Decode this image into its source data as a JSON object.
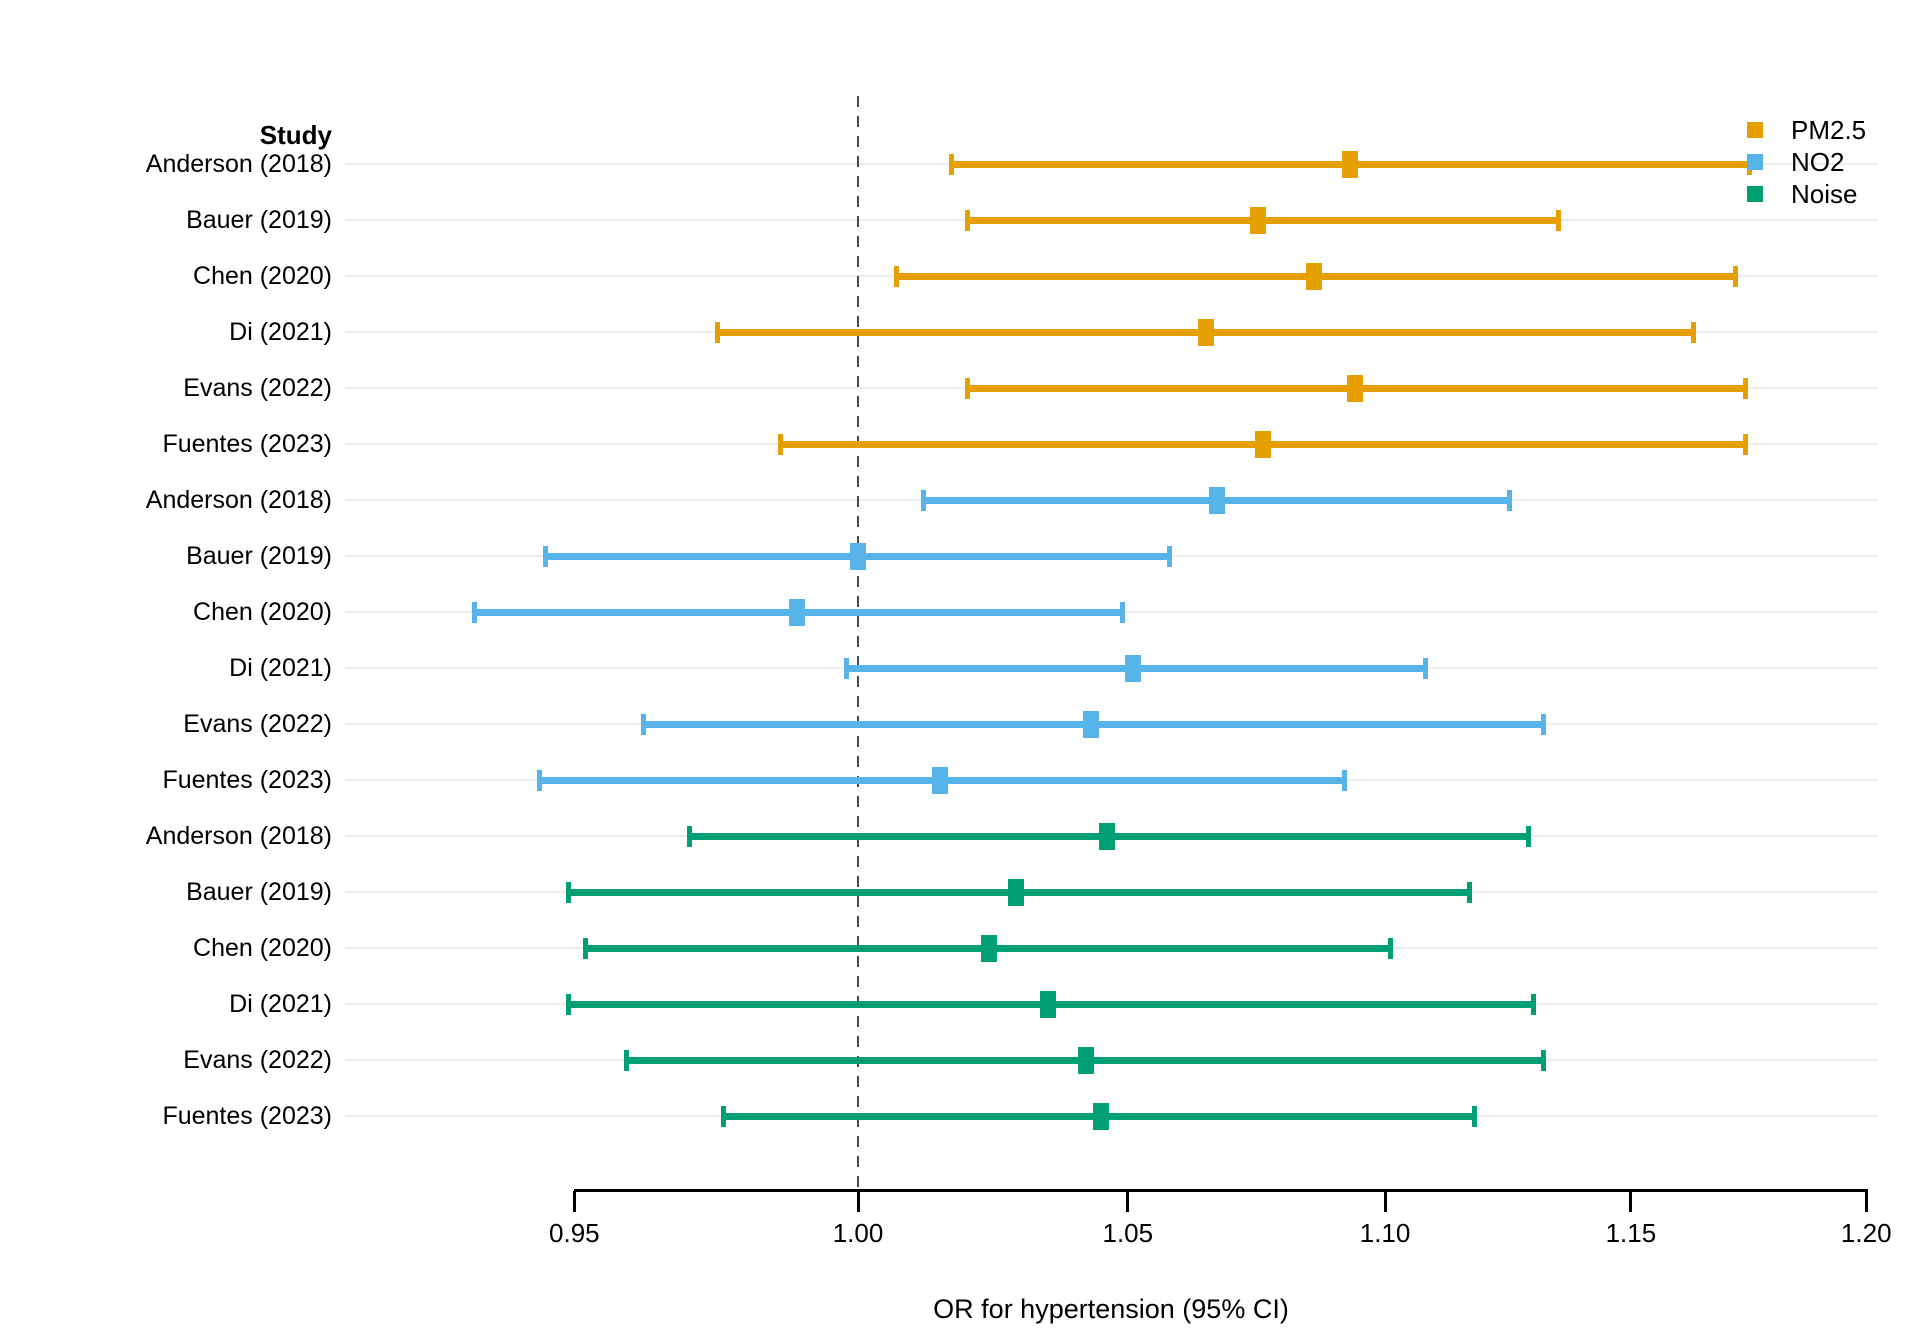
{
  "study_column": {
    "label": "Study"
  },
  "x_axis": {
    "label": "OR for hypertension (95% CI)",
    "scale": "log",
    "reference_value": 1.0,
    "ticks": [
      {
        "label": "0.95",
        "value": 0.95
      },
      {
        "label": "1.00",
        "value": 1.0
      },
      {
        "label": "1.05",
        "value": 1.05
      },
      {
        "label": "1.10",
        "value": 1.1
      },
      {
        "label": "1.15",
        "value": 1.15
      },
      {
        "label": "1.20",
        "value": 1.2
      }
    ]
  },
  "legend": {
    "position": "top-right",
    "items": [
      {
        "label": "PM2.5",
        "color": "#E69F00"
      },
      {
        "label": "NO2",
        "color": "#56B4E9"
      },
      {
        "label": "Noise",
        "color": "#009E73"
      }
    ]
  },
  "chart_data": {
    "type": "scatter",
    "variant": "forest_plot_with_error_bars",
    "title": "",
    "xlabel": "OR for hypertension (95% CI)",
    "ylabel": "Study",
    "x_scale": "log",
    "xlim": [
      0.93,
      1.2
    ],
    "grid": "horizontal-light",
    "reference_line_x": 1.0,
    "categories": [
      "Anderson (2018)",
      "Bauer (2019)",
      "Chen (2020)",
      "Di (2021)",
      "Evans (2022)",
      "Fuentes (2023)",
      "Anderson (2018)",
      "Bauer (2019)",
      "Chen (2020)",
      "Di (2021)",
      "Evans (2022)",
      "Fuentes (2023)",
      "Anderson (2018)",
      "Bauer (2019)",
      "Chen (2020)",
      "Di (2021)",
      "Evans (2022)",
      "Fuentes (2023)"
    ],
    "series": [
      {
        "name": "PM2.5",
        "color": "#E69F00",
        "points": [
          {
            "study": "Anderson (2018)",
            "or": 1.093,
            "ci_low": 1.017,
            "ci_high": 1.175
          },
          {
            "study": "Bauer (2019)",
            "or": 1.075,
            "ci_low": 1.02,
            "ci_high": 1.135
          },
          {
            "study": "Chen (2020)",
            "or": 1.086,
            "ci_low": 1.007,
            "ci_high": 1.172
          },
          {
            "study": "Di (2021)",
            "or": 1.065,
            "ci_low": 0.975,
            "ci_high": 1.163
          },
          {
            "study": "Evans (2022)",
            "or": 1.094,
            "ci_low": 1.02,
            "ci_high": 1.174
          },
          {
            "study": "Fuentes (2023)",
            "or": 1.076,
            "ci_low": 0.986,
            "ci_high": 1.174
          }
        ]
      },
      {
        "name": "NO2",
        "color": "#56B4E9",
        "points": [
          {
            "study": "Anderson (2018)",
            "or": 1.067,
            "ci_low": 1.012,
            "ci_high": 1.125
          },
          {
            "study": "Bauer (2019)",
            "or": 1.0,
            "ci_low": 0.945,
            "ci_high": 1.058
          },
          {
            "study": "Chen (2020)",
            "or": 0.989,
            "ci_low": 0.933,
            "ci_high": 1.049
          },
          {
            "study": "Di (2021)",
            "or": 1.051,
            "ci_low": 0.998,
            "ci_high": 1.108
          },
          {
            "study": "Evans (2022)",
            "or": 1.043,
            "ci_low": 0.962,
            "ci_high": 1.132
          },
          {
            "study": "Fuentes (2023)",
            "or": 1.015,
            "ci_low": 0.944,
            "ci_high": 1.092
          }
        ]
      },
      {
        "name": "Noise",
        "color": "#009E73",
        "points": [
          {
            "study": "Anderson (2018)",
            "or": 1.046,
            "ci_low": 0.97,
            "ci_high": 1.129
          },
          {
            "study": "Bauer (2019)",
            "or": 1.029,
            "ci_low": 0.949,
            "ci_high": 1.117
          },
          {
            "study": "Chen (2020)",
            "or": 1.024,
            "ci_low": 0.952,
            "ci_high": 1.101
          },
          {
            "study": "Di (2021)",
            "or": 1.035,
            "ci_low": 0.949,
            "ci_high": 1.13
          },
          {
            "study": "Evans (2022)",
            "or": 1.042,
            "ci_low": 0.959,
            "ci_high": 1.132
          },
          {
            "study": "Fuentes (2023)",
            "or": 1.045,
            "ci_low": 0.976,
            "ci_high": 1.118
          }
        ]
      }
    ]
  }
}
